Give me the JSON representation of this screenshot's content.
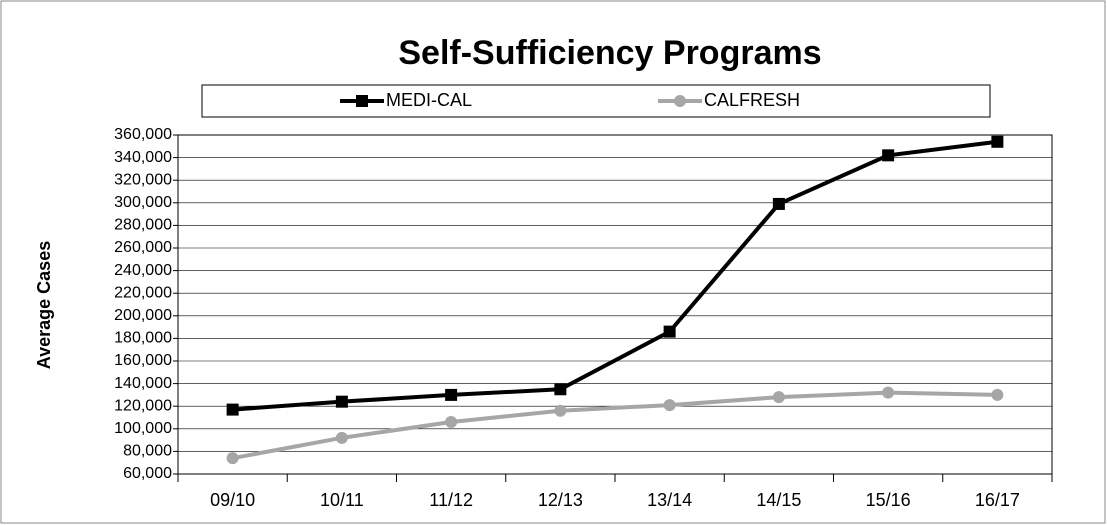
{
  "chart_data": {
    "type": "line",
    "title": "Self-Sufficiency Programs",
    "ylabel": "Average Cases",
    "categories": [
      "09/10",
      "10/11",
      "11/12",
      "12/13",
      "13/14",
      "14/15",
      "15/16",
      "16/17"
    ],
    "series": [
      {
        "name": "MEDI-CAL",
        "color": "#000000",
        "marker": "square",
        "values": [
          117000,
          124000,
          130000,
          135000,
          186000,
          299000,
          342000,
          354000
        ]
      },
      {
        "name": "CALFRESH",
        "color": "#a6a6a6",
        "marker": "circle",
        "values": [
          74000,
          92000,
          106000,
          116000,
          121000,
          128000,
          132000,
          130000
        ]
      }
    ],
    "ylim": [
      60000,
      360000
    ],
    "yticks": [
      {
        "value": 60000,
        "label": "60,000"
      },
      {
        "value": 80000,
        "label": "80,000"
      },
      {
        "value": 100000,
        "label": "100,000"
      },
      {
        "value": 120000,
        "label": "120,000"
      },
      {
        "value": 140000,
        "label": "140,000"
      },
      {
        "value": 160000,
        "label": "160,000"
      },
      {
        "value": 180000,
        "label": "180,000"
      },
      {
        "value": 200000,
        "label": "200,000"
      },
      {
        "value": 220000,
        "label": "220,000"
      },
      {
        "value": 240000,
        "label": "240,000"
      },
      {
        "value": 260000,
        "label": "260,000"
      },
      {
        "value": 280000,
        "label": "280,000"
      },
      {
        "value": 300000,
        "label": "300,000"
      },
      {
        "value": 320000,
        "label": "320,000"
      },
      {
        "value": 340000,
        "label": "340,000"
      },
      {
        "value": 360000,
        "label": "360,000"
      }
    ],
    "grid": true,
    "legend": "top"
  }
}
